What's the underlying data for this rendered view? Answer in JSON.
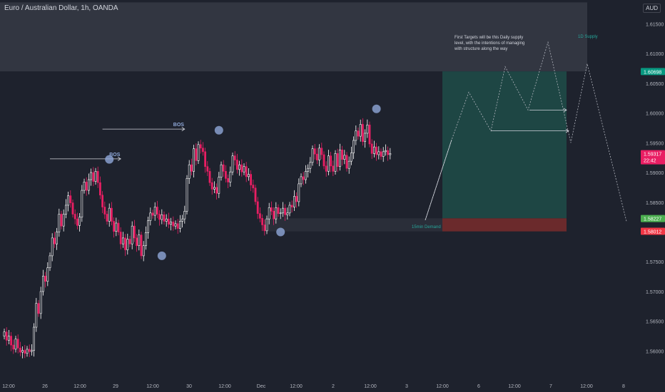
{
  "header": {
    "title": "Euro / Australian Dollar, 1h, OANDA",
    "currency": "AUD"
  },
  "colors": {
    "background": "#1e222d",
    "up_candle": "#ffffff",
    "down_candle": "#e91e63",
    "supply_zone": "#363a45",
    "target_zone": "#1e4a47",
    "stop_zone": "#6b2a2c",
    "marker": "#8fa8d8",
    "green_badge": "#089981",
    "pink_badge": "#e91e63",
    "dark_badge": "#131722",
    "light_green_badge": "#4caf50",
    "red_badge": "#f23645"
  },
  "chart_data": {
    "type": "candlestick",
    "title": "Euro / Australian Dollar, 1h, OANDA",
    "ylim": [
      1.5555,
      1.619
    ],
    "x_ticks": [
      "12:00",
      "26",
      "12:00",
      "29",
      "12:00",
      "30",
      "12:00",
      "Dec",
      "12:00",
      "2",
      "12:00",
      "3",
      "12:00",
      "6",
      "12:00",
      "7",
      "12:00",
      "8"
    ],
    "y_ticks": [
      1.615,
      1.61,
      1.605,
      1.6,
      1.595,
      1.59,
      1.585,
      1.58,
      1.575,
      1.57,
      1.565,
      1.56
    ],
    "y_tick_labels": [
      "1.61500",
      "1.61000",
      "1.60500",
      "1.60000",
      "1.59500",
      "1.59000",
      "1.58500",
      "1.58000",
      "1.57500",
      "1.57000",
      "1.56500",
      "1.56000"
    ],
    "price_badges": [
      {
        "value": 1.60698,
        "label": "1.60698",
        "style": "green"
      },
      {
        "value": 1.59317,
        "label": "1.59317",
        "extra": "22:42",
        "style": "pink"
      },
      {
        "value": 1.58227,
        "label": "1.58227",
        "style": "lightgreen"
      },
      {
        "value": 1.58012,
        "label": "1.58012",
        "style": "red"
      }
    ],
    "candles": {
      "start": 1.5625,
      "closes": [
        1.5632,
        1.5618,
        1.5625,
        1.561,
        1.5603,
        1.562,
        1.5605,
        1.5598,
        1.5601,
        1.5596,
        1.5603,
        1.5599,
        1.5601,
        1.564,
        1.568,
        1.5663,
        1.57,
        1.5726,
        1.5717,
        1.574,
        1.576,
        1.579,
        1.578,
        1.58,
        1.583,
        1.581,
        1.583,
        1.5845,
        1.5861,
        1.5849,
        1.583,
        1.5822,
        1.5811,
        1.5825,
        1.587,
        1.5884,
        1.587,
        1.5888,
        1.59,
        1.5885,
        1.5902,
        1.5883,
        1.5862,
        1.5842,
        1.583,
        1.5818,
        1.584,
        1.5818,
        1.5801,
        1.5815,
        1.58,
        1.578,
        1.579,
        1.577,
        1.5788,
        1.578,
        1.581,
        1.579,
        1.5777,
        1.5795,
        1.576,
        1.5777,
        1.5799,
        1.5819,
        1.5832,
        1.5828,
        1.5842,
        1.583,
        1.5821,
        1.5829,
        1.5818,
        1.5822,
        1.5813,
        1.5817,
        1.581,
        1.5814,
        1.5806,
        1.5818,
        1.5822,
        1.5835,
        1.589,
        1.5913,
        1.5902,
        1.594,
        1.592,
        1.5947,
        1.5941,
        1.5935,
        1.591,
        1.5902,
        1.5883,
        1.5872,
        1.5875,
        1.5865,
        1.5892,
        1.5913,
        1.5902,
        1.589,
        1.5884,
        1.5901,
        1.5928,
        1.5921,
        1.5905,
        1.5913,
        1.5901,
        1.591,
        1.5893,
        1.5897,
        1.5879,
        1.5874,
        1.5851,
        1.5831,
        1.5823,
        1.5812,
        1.5802,
        1.5822,
        1.5841,
        1.5835,
        1.5822,
        1.5841,
        1.5831,
        1.5832,
        1.584,
        1.5829,
        1.5832,
        1.5845,
        1.5842,
        1.586,
        1.5851,
        1.5881,
        1.5893,
        1.5888,
        1.5902,
        1.5907,
        1.5917,
        1.594,
        1.5931,
        1.5921,
        1.5941,
        1.593,
        1.5911,
        1.5902,
        1.5928,
        1.5911,
        1.5902,
        1.5932,
        1.591,
        1.5938,
        1.5922,
        1.5929,
        1.5907,
        1.5919,
        1.5933,
        1.5954,
        1.597,
        1.5961,
        1.5981,
        1.5952,
        1.5966,
        1.598,
        1.5948,
        1.5932,
        1.5943,
        1.593,
        1.5935,
        1.5927,
        1.5935,
        1.5937,
        1.593,
        1.5932
      ]
    },
    "annotations": {
      "bos": [
        {
          "label": "BOS",
          "from_index": 20,
          "to_index": 51,
          "value": 1.5923
        },
        {
          "label": "BOS",
          "from_index": 43,
          "to_index": 79,
          "value": 1.5973
        }
      ],
      "note": "First Targets will be this Daily supply level, with the intentions of managing with structure along the way",
      "supply_label": "1D Supply",
      "demand_label": "15min Demand"
    }
  }
}
